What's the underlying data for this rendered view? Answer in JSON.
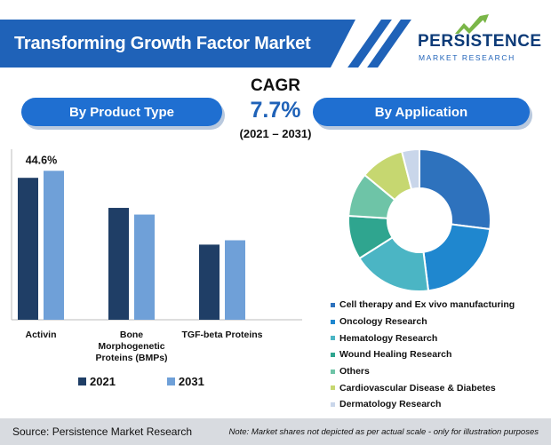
{
  "header": {
    "title": "Transforming Growth Factor Market"
  },
  "logo": {
    "name": "PERSISTENCE",
    "tagline": "MARKET RESEARCH"
  },
  "cagr": {
    "label": "CAGR",
    "value": "7.7%",
    "period": "(2021 – 2031)"
  },
  "sections": {
    "left": "By Product Type",
    "right": "By Application"
  },
  "colors": {
    "brand": "#1f62b8",
    "series2021": "#1f3e66",
    "series2031": "#6fa0d8"
  },
  "chart_data": [
    {
      "type": "bar",
      "categories": [
        "Activin",
        "Bone Morphogenetic Proteins (BMPs)",
        "TGF-beta Proteins"
      ],
      "category_lines": [
        [
          "Activin"
        ],
        [
          "Bone",
          "Morphogenetic",
          "Proteins (BMPs)"
        ],
        [
          "TGF-beta Proteins"
        ]
      ],
      "series": [
        {
          "name": "2021",
          "values": [
            42.5,
            33.5,
            22.5
          ],
          "color": "#1f3e66"
        },
        {
          "name": "2031",
          "values": [
            44.6,
            31.5,
            23.8
          ],
          "color": "#6fa0d8"
        }
      ],
      "data_labels": [
        {
          "category": 0,
          "series": 1,
          "text": "44.6%"
        }
      ],
      "ylim": [
        0,
        50
      ],
      "legend": "bottom"
    },
    {
      "type": "pie",
      "donut": true,
      "labels": [
        "Cell therapy and Ex vivo manufacturing",
        "Oncology Research",
        "Hematology Research",
        "Wound Healing Research",
        "Others",
        "Cardiovascular Disease & Diabetes",
        "Dermatology Research"
      ],
      "values": [
        27,
        21,
        18,
        10,
        10,
        10,
        4
      ],
      "colors": [
        "#2e72bd",
        "#1f87cf",
        "#4bb5c4",
        "#2fa58f",
        "#6ec4a7",
        "#c6d770",
        "#c9d6ea"
      ],
      "legend": "bottom-right"
    }
  ],
  "footer": {
    "source": "Source: Persistence Market Research",
    "note": "Note: Market shares not depicted as per actual scale - only for illustration purposes"
  }
}
